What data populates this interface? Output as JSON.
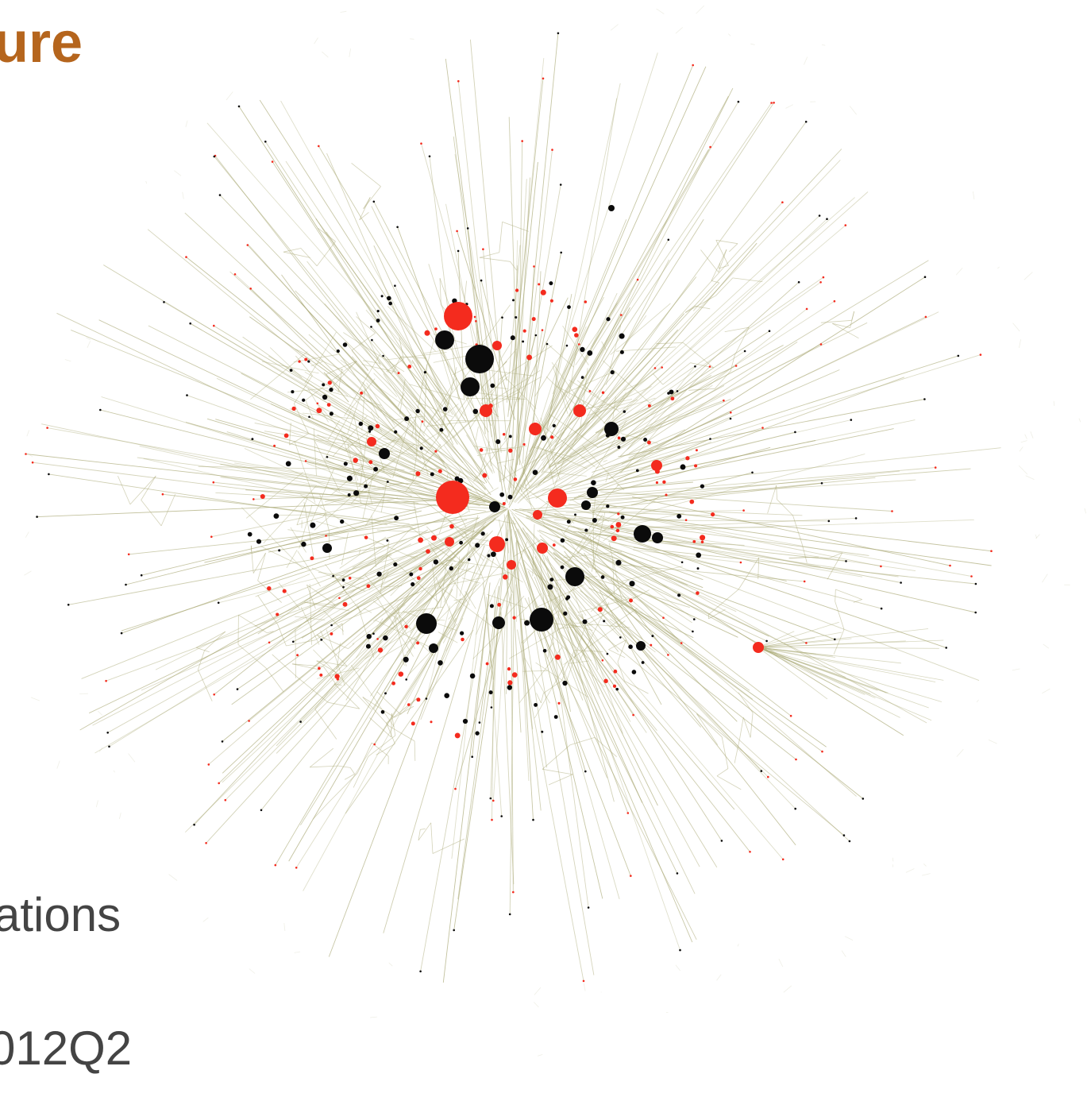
{
  "title": "ure",
  "text_lines": [
    "ations",
    "012Q2"
  ],
  "colors": {
    "title": "#b5651d",
    "body_text": "#444444",
    "edge": "#a9a874",
    "node_red": "#f42b1e",
    "node_black": "#0b0b0b"
  },
  "node_types": [
    "red",
    "black"
  ]
}
